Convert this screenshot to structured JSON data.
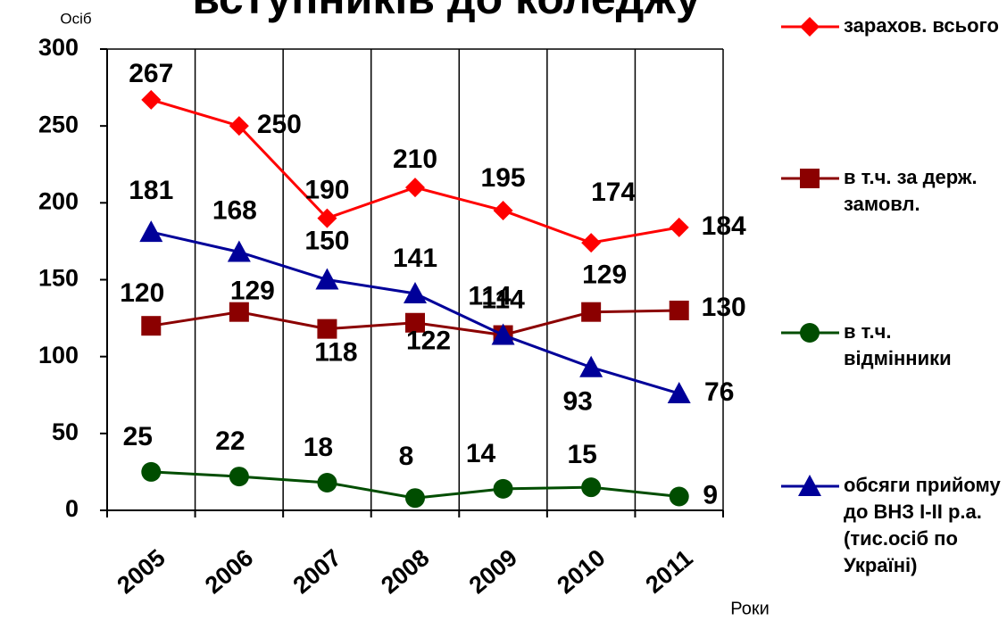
{
  "chart_data": {
    "type": "line",
    "title": "вступників до коледжу",
    "y_label": "Осіб",
    "x_label": "Роки",
    "categories": [
      "2005",
      "2006",
      "2007",
      "2008",
      "2009",
      "2010",
      "2011"
    ],
    "series": [
      {
        "name": "зарахов. всього",
        "color": "#ff0000",
        "marker": "diamond",
        "values": [
          267,
          250,
          190,
          210,
          195,
          174,
          184
        ]
      },
      {
        "name": "в т.ч. за держ. замовл.",
        "color": "#8b0000",
        "marker": "square",
        "values": [
          120,
          129,
          118,
          122,
          114,
          129,
          130
        ]
      },
      {
        "name": "в т.ч. відмінники",
        "color": "#004d00",
        "marker": "circle",
        "values": [
          25,
          22,
          18,
          8,
          14,
          15,
          9
        ]
      },
      {
        "name": "обсяги прийому до ВНЗ І-ІІ р.а. (тис.осіб по Україні)",
        "color": "#000099",
        "marker": "triangle",
        "values": [
          181,
          168,
          150,
          141,
          114,
          93,
          76
        ]
      }
    ],
    "ylim": [
      0,
      300
    ],
    "yticks": [
      0,
      50,
      100,
      150,
      200,
      250,
      300
    ],
    "grid": true,
    "legend": "right"
  }
}
